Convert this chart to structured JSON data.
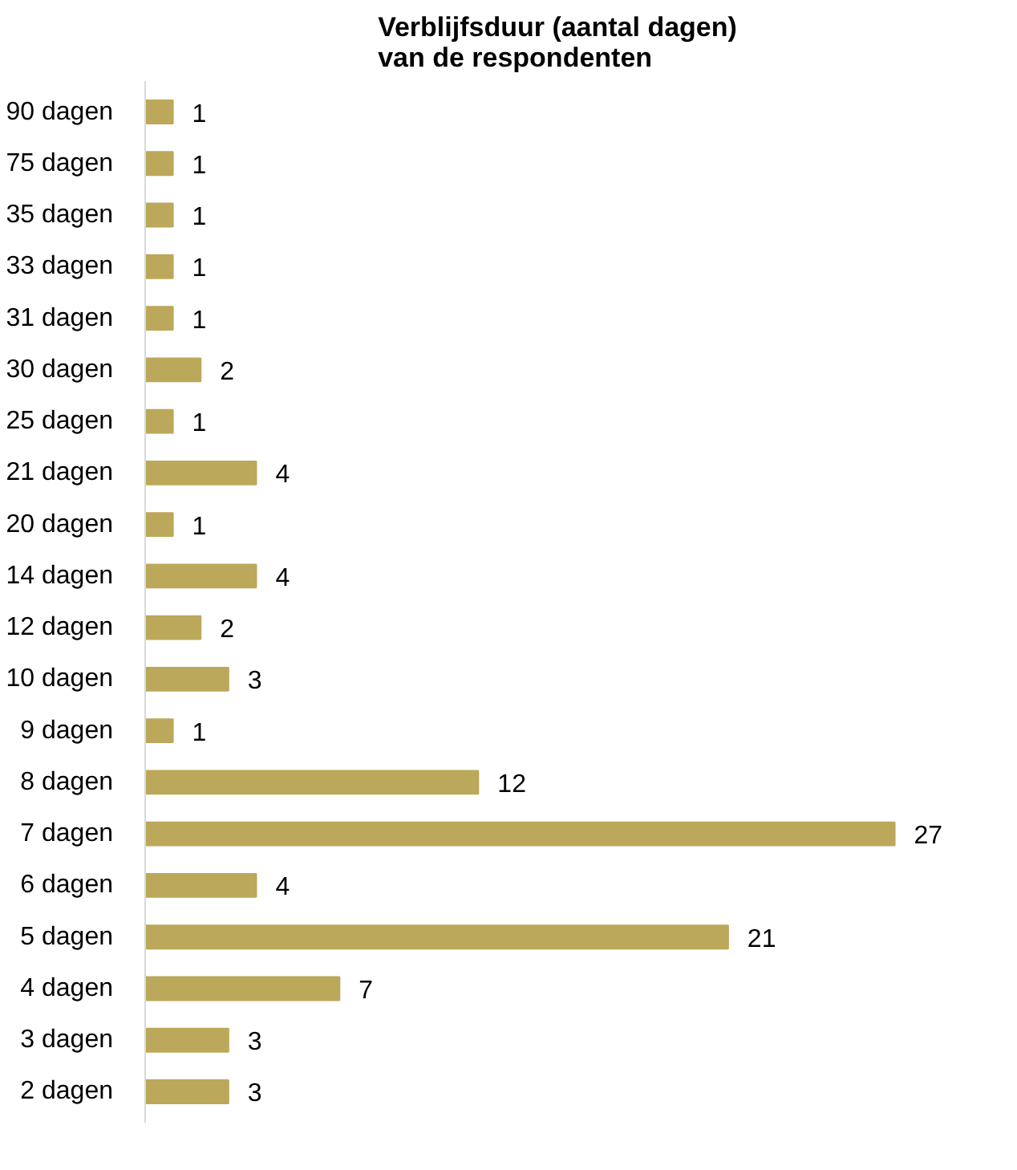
{
  "chart_data": {
    "type": "bar",
    "orientation": "horizontal",
    "title": "Verblijfsduur (aantal dagen)\nvan de respondenten",
    "categories": [
      "90 dagen",
      "75 dagen",
      "35 dagen",
      "33 dagen",
      "31 dagen",
      "30 dagen",
      "25 dagen",
      "21 dagen",
      "20 dagen",
      "14 dagen",
      "12 dagen",
      "10 dagen",
      "9 dagen",
      "8 dagen",
      "7 dagen",
      "6 dagen",
      "5 dagen",
      "4 dagen",
      "3 dagen",
      "2 dagen"
    ],
    "values": [
      1,
      1,
      1,
      1,
      1,
      2,
      1,
      4,
      1,
      4,
      2,
      3,
      1,
      12,
      27,
      4,
      21,
      7,
      3,
      3
    ],
    "color": "#bba85a",
    "data_labels": true,
    "tick_labels": "y",
    "grid": false
  }
}
